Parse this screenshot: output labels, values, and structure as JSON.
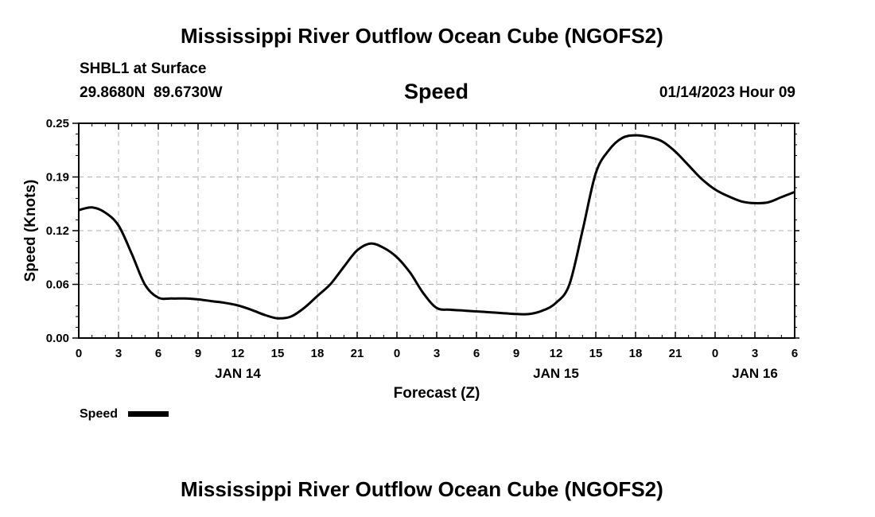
{
  "page": {
    "title_top": "Mississippi River Outflow Ocean Cube (NGOFS2)",
    "title_bottom": "Mississippi River Outflow Ocean Cube (NGOFS2)",
    "station": "SHBL1 at Surface",
    "coords": "29.8680N  89.6730W",
    "chart_title": "Speed",
    "datetime": "01/14/2023 Hour 09",
    "legend_label": "Speed"
  },
  "chart_data": {
    "type": "line",
    "title": "Speed",
    "xlabel": "Forecast (Z)",
    "ylabel": "Speed (Knots)",
    "xlim": [
      0,
      54
    ],
    "ylim": [
      0,
      0.25
    ],
    "grid": true,
    "legend": "bottom-left",
    "x_ticks": [
      {
        "x": 0,
        "label": "0"
      },
      {
        "x": 3,
        "label": "3"
      },
      {
        "x": 6,
        "label": "6"
      },
      {
        "x": 9,
        "label": "9"
      },
      {
        "x": 12,
        "label": "12"
      },
      {
        "x": 15,
        "label": "15"
      },
      {
        "x": 18,
        "label": "18"
      },
      {
        "x": 21,
        "label": "21"
      },
      {
        "x": 24,
        "label": "0"
      },
      {
        "x": 27,
        "label": "3"
      },
      {
        "x": 30,
        "label": "6"
      },
      {
        "x": 33,
        "label": "9"
      },
      {
        "x": 36,
        "label": "12"
      },
      {
        "x": 39,
        "label": "15"
      },
      {
        "x": 42,
        "label": "18"
      },
      {
        "x": 45,
        "label": "21"
      },
      {
        "x": 48,
        "label": "0"
      },
      {
        "x": 51,
        "label": "3"
      },
      {
        "x": 54,
        "label": "6"
      }
    ],
    "date_labels": [
      {
        "x": 12,
        "label": "JAN 14"
      },
      {
        "x": 36,
        "label": "JAN 15"
      },
      {
        "x": 51,
        "label": "JAN 16"
      }
    ],
    "y_ticks": [
      {
        "y": 0.0,
        "label": "0.00"
      },
      {
        "y": 0.0625,
        "label": "0.06"
      },
      {
        "y": 0.125,
        "label": "0.12"
      },
      {
        "y": 0.1875,
        "label": "0.19"
      },
      {
        "y": 0.25,
        "label": "0.25"
      }
    ],
    "series": [
      {
        "name": "Speed",
        "x": [
          0,
          1,
          2,
          3,
          4,
          5,
          6,
          7,
          8,
          9,
          10,
          11,
          12,
          13,
          14,
          15,
          16,
          17,
          18,
          19,
          20,
          21,
          22,
          23,
          24,
          25,
          26,
          27,
          28,
          29,
          30,
          31,
          32,
          33,
          34,
          35,
          36,
          37,
          38,
          39,
          40,
          41,
          42,
          43,
          44,
          45,
          46,
          47,
          48,
          49,
          50,
          51,
          52,
          53,
          54
        ],
        "values": [
          0.149,
          0.152,
          0.146,
          0.131,
          0.098,
          0.062,
          0.047,
          0.046,
          0.046,
          0.045,
          0.043,
          0.041,
          0.038,
          0.033,
          0.027,
          0.023,
          0.025,
          0.035,
          0.049,
          0.063,
          0.083,
          0.102,
          0.11,
          0.105,
          0.094,
          0.076,
          0.052,
          0.035,
          0.033,
          0.032,
          0.031,
          0.03,
          0.029,
          0.028,
          0.028,
          0.032,
          0.041,
          0.062,
          0.125,
          0.192,
          0.219,
          0.233,
          0.236,
          0.234,
          0.229,
          0.217,
          0.201,
          0.185,
          0.173,
          0.165,
          0.159,
          0.157,
          0.158,
          0.164,
          0.17
        ]
      }
    ]
  }
}
